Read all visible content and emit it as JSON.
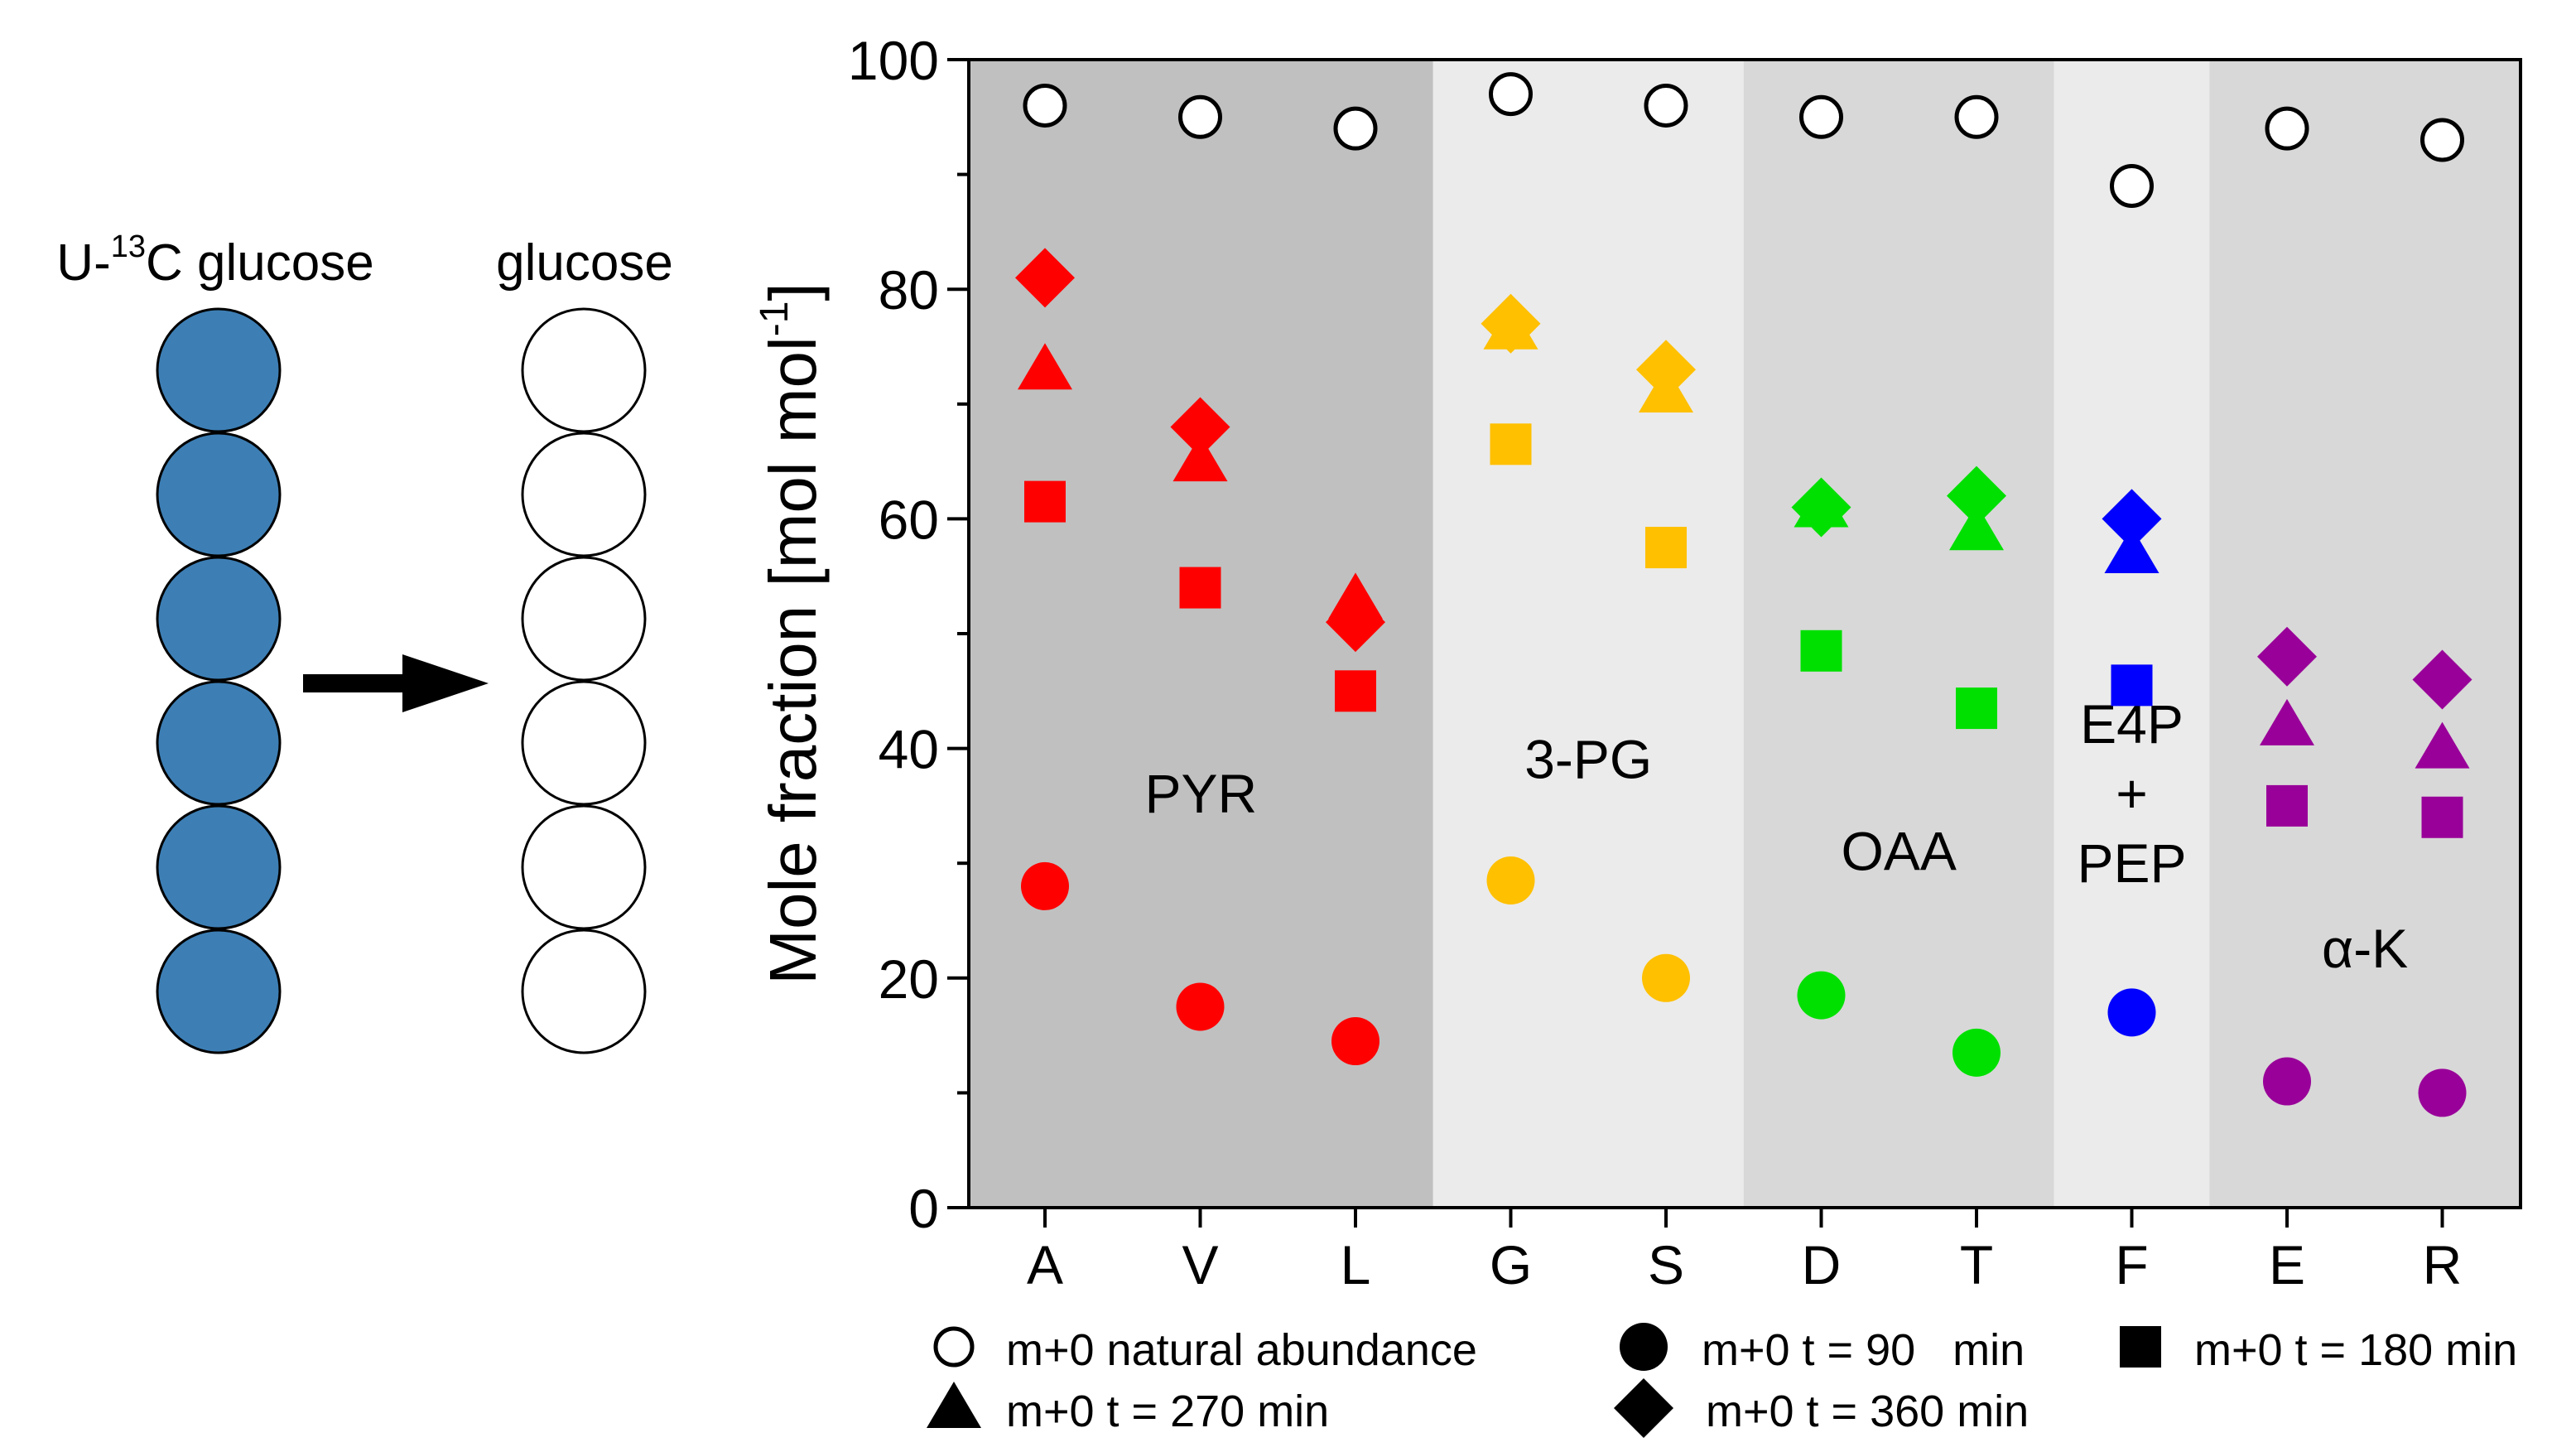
{
  "schematic": {
    "left_label_prefix": "U-",
    "left_label_superscript": "13",
    "left_label_suffix": "C glucose",
    "right_label": "glucose",
    "left_circle_color": "#3d7fb5",
    "right_circle_color": "#ffffff",
    "carbon_count": 6
  },
  "chart_data": {
    "type": "scatter",
    "ylabel": "Mole fraction [mol mol",
    "ylabel_superscript": "-1",
    "ylabel_close": "]",
    "ylim": [
      0,
      100
    ],
    "y_ticks": [
      0,
      20,
      40,
      60,
      80,
      100
    ],
    "categories": [
      "A",
      "V",
      "L",
      "G",
      "S",
      "D",
      "T",
      "F",
      "E",
      "R"
    ],
    "groups": [
      {
        "label": "PYR",
        "members": [
          "A",
          "V",
          "L"
        ],
        "shade": "#c0c0c0",
        "label_y": 36
      },
      {
        "label": "3-PG",
        "members": [
          "G",
          "S"
        ],
        "shade": "#ebebeb",
        "label_y": 39
      },
      {
        "label": "OAA",
        "members": [
          "D",
          "T"
        ],
        "shade": "#d8d8d8",
        "label_y": 31
      },
      {
        "label": "E4P + PEP",
        "label_lines": [
          "E4P",
          "+",
          "PEP"
        ],
        "members": [
          "F"
        ],
        "shade": "#ebebeb",
        "label_y": 36
      },
      {
        "label": "α-K",
        "members": [
          "E",
          "R"
        ],
        "shade": "#d8d8d8",
        "label_y": 22.5
      }
    ],
    "category_colors": {
      "A": "#ff0000",
      "V": "#ff0000",
      "L": "#ff0000",
      "G": "#ffc000",
      "S": "#ffc000",
      "D": "#00e000",
      "T": "#00e000",
      "F": "#0000ff",
      "E": "#990099",
      "R": "#990099"
    },
    "series": [
      {
        "name": "m+0 natural abundance",
        "marker": "open-circle",
        "values": [
          96,
          95,
          94,
          97,
          96,
          95,
          95,
          89,
          94,
          93
        ]
      },
      {
        "name": "m+0 t = 90   min",
        "marker": "circle",
        "values": [
          28,
          17.5,
          14.5,
          28.5,
          20,
          18.5,
          13.5,
          17,
          11,
          10
        ]
      },
      {
        "name": "m+0 t = 180 min",
        "marker": "square",
        "values": [
          61.5,
          54,
          45,
          66.5,
          57.5,
          48.5,
          43.5,
          45.5,
          35,
          34
        ]
      },
      {
        "name": "m+0 t = 270 min",
        "marker": "triangle",
        "values": [
          73,
          65,
          53,
          76.5,
          71,
          61,
          59,
          57,
          42,
          40
        ]
      },
      {
        "name": "m+0 t = 360 min",
        "marker": "diamond",
        "values": [
          81,
          68,
          51,
          77,
          73,
          61,
          62,
          60,
          48,
          46
        ]
      }
    ],
    "legend": [
      {
        "label": "m+0 natural abundance",
        "marker": "open-circle"
      },
      {
        "label": "m+0 t = 90   min",
        "marker": "circle"
      },
      {
        "label": "m+0 t = 180 min",
        "marker": "square"
      },
      {
        "label": "m+0 t = 270 min",
        "marker": "triangle"
      },
      {
        "label": "m+0 t = 360 min",
        "marker": "diamond"
      }
    ]
  }
}
